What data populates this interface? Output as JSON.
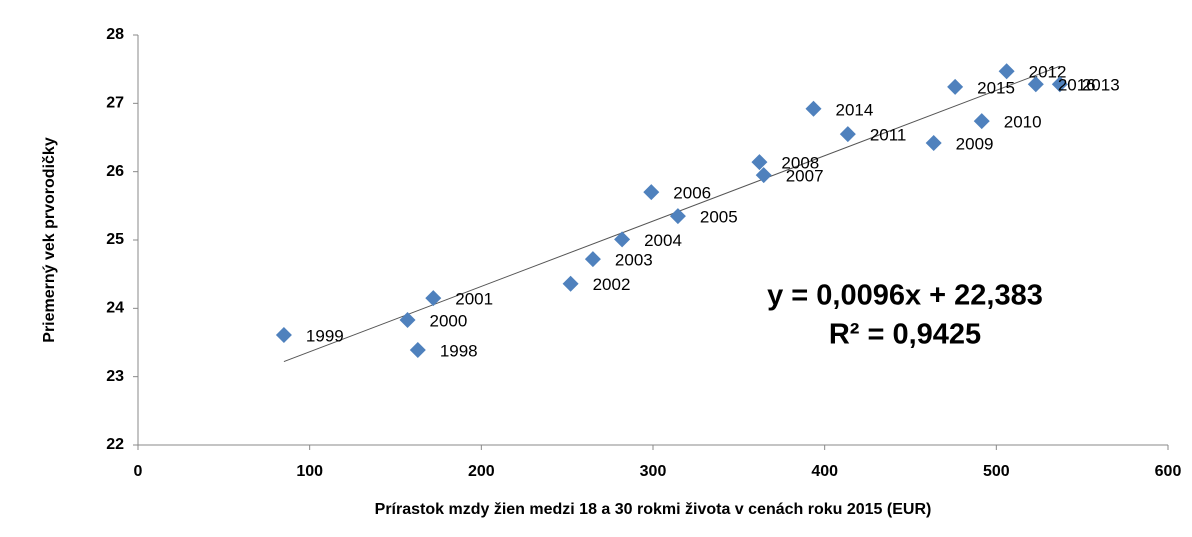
{
  "chart_data": {
    "type": "scatter",
    "x_label": "Prírastok mzdy žien medzi 18 a 30 rokmi  života v cenách roku 2015 (EUR)",
    "y_label": "Priemerný vek prvorodičky",
    "labels": [
      "1998",
      "1999",
      "2000",
      "2001",
      "2002",
      "2003",
      "2004",
      "2005",
      "2006",
      "2007",
      "2008",
      "2009",
      "2010",
      "2011",
      "2012",
      "2013",
      "2014",
      "2015",
      "2016"
    ],
    "x": [
      163,
      85,
      157,
      172,
      252,
      265,
      282,
      314.5,
      299,
      364.5,
      362,
      463.5,
      491.5,
      413.5,
      506,
      537,
      393.5,
      476,
      523
    ],
    "values": [
      23.39,
      23.61,
      23.83,
      24.15,
      24.36,
      24.72,
      25.01,
      25.35,
      25.7,
      25.95,
      26.14,
      26.42,
      26.74,
      26.55,
      27.47,
      27.28,
      26.92,
      27.24,
      27.28
    ],
    "color": "#4f81bd",
    "trendline": true,
    "equation": "y = 0,0096x + 22,383",
    "r_squared": "R² = 0,9425",
    "xlim": [
      0,
      600
    ],
    "xticks": [
      0,
      100,
      200,
      300,
      400,
      500,
      600
    ],
    "ylim": [
      22,
      28
    ],
    "yticks": [
      22,
      23,
      24,
      25,
      26,
      27,
      28
    ],
    "grid": false
  }
}
